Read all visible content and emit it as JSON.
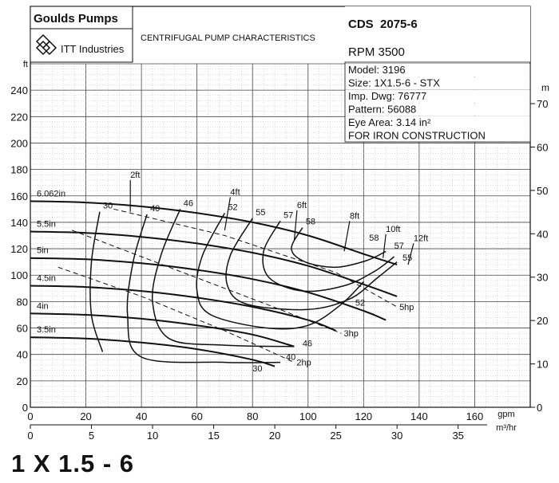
{
  "header": {
    "brand": "Goulds Pumps",
    "company": "ITT Industries",
    "chart_title": "CENTRIFUGAL PUMP CHARACTERISTICS",
    "curve_code": "CDS  2075-6",
    "rpm": "RPM 3500",
    "details": [
      "Model: 3196",
      "Size: 1X1.5-6 - STX",
      "Imp. Dwg: 76777",
      "Pattern: 56088",
      "Eye Area: 3.14 in²",
      "FOR IRON CONSTRUCTION"
    ]
  },
  "footer_title": "1 X 1.5 - 6",
  "colors": {
    "line": "#111111",
    "grid": "#b8b8b8",
    "grid_major": "#444444",
    "background": "#ffffff"
  },
  "chart_data": {
    "type": "line",
    "x_axis": {
      "label": "gpm",
      "range": [
        0,
        180
      ],
      "ticks": [
        0,
        20,
        40,
        60,
        80,
        100,
        120,
        140,
        160
      ]
    },
    "x2_axis": {
      "label": "m³/hr",
      "range": [
        0,
        40.9
      ],
      "ticks": [
        0,
        5,
        10,
        15,
        20,
        25,
        30,
        35
      ]
    },
    "y_axis": {
      "label": "ft",
      "range": [
        0,
        260
      ],
      "ticks": [
        0,
        20,
        40,
        60,
        80,
        100,
        120,
        140,
        160,
        180,
        200,
        220,
        240
      ]
    },
    "y2_axis": {
      "label": "m",
      "range": [
        0,
        79.2
      ],
      "ticks": [
        0,
        10,
        20,
        30,
        40,
        50,
        60,
        70
      ]
    },
    "head_curves": [
      {
        "label": "6.062in",
        "points": [
          [
            0,
            156
          ],
          [
            20,
            155
          ],
          [
            40,
            152
          ],
          [
            60,
            147
          ],
          [
            80,
            140
          ],
          [
            100,
            130
          ],
          [
            120,
            116
          ],
          [
            132,
            108
          ]
        ]
      },
      {
        "label": "5.5in",
        "points": [
          [
            0,
            133
          ],
          [
            20,
            132
          ],
          [
            40,
            129
          ],
          [
            60,
            124
          ],
          [
            80,
            117
          ],
          [
            100,
            107
          ],
          [
            120,
            93
          ],
          [
            132,
            84
          ]
        ]
      },
      {
        "label": "5in",
        "points": [
          [
            0,
            113
          ],
          [
            20,
            112
          ],
          [
            40,
            109
          ],
          [
            60,
            104
          ],
          [
            80,
            97
          ],
          [
            100,
            87
          ],
          [
            120,
            73
          ],
          [
            128,
            66
          ]
        ]
      },
      {
        "label": "4.5in",
        "points": [
          [
            0,
            92
          ],
          [
            20,
            91
          ],
          [
            40,
            88
          ],
          [
            60,
            83
          ],
          [
            80,
            76
          ],
          [
            100,
            66
          ],
          [
            110,
            58
          ]
        ]
      },
      {
        "label": "4in",
        "points": [
          [
            0,
            71
          ],
          [
            20,
            70
          ],
          [
            40,
            67
          ],
          [
            60,
            62
          ],
          [
            80,
            55
          ],
          [
            95,
            46
          ]
        ]
      },
      {
        "label": "3.5in",
        "points": [
          [
            0,
            53
          ],
          [
            20,
            52
          ],
          [
            40,
            49
          ],
          [
            60,
            44
          ],
          [
            80,
            36
          ],
          [
            88,
            31
          ]
        ]
      }
    ],
    "efficiency_curves": [
      {
        "label": "30",
        "points": [
          [
            25,
            148
          ],
          [
            22,
            110
          ],
          [
            22,
            70
          ],
          [
            26,
            42
          ]
        ]
      },
      {
        "label": "40",
        "points": [
          [
            42,
            146
          ],
          [
            37,
            110
          ],
          [
            35,
            70
          ],
          [
            40,
            38
          ],
          [
            70,
            34
          ],
          [
            90,
            34
          ]
        ]
      },
      {
        "label": "46",
        "points": [
          [
            54,
            150
          ],
          [
            47,
            115
          ],
          [
            44,
            80
          ],
          [
            50,
            52
          ],
          [
            70,
            47
          ],
          [
            95,
            46
          ]
        ]
      },
      {
        "label": "52",
        "points": [
          [
            70,
            147
          ],
          [
            62,
            115
          ],
          [
            60,
            88
          ],
          [
            65,
            70
          ],
          [
            85,
            60
          ],
          [
            100,
            62
          ],
          [
            112,
            78
          ],
          [
            120,
            95
          ]
        ]
      },
      {
        "label": "55",
        "points": [
          [
            80,
            143
          ],
          [
            72,
            115
          ],
          [
            71,
            92
          ],
          [
            78,
            78
          ],
          [
            100,
            74
          ],
          [
            115,
            82
          ],
          [
            125,
            98
          ],
          [
            132,
            110
          ]
        ]
      },
      {
        "label": "57",
        "points": [
          [
            90,
            141
          ],
          [
            84,
            118
          ],
          [
            86,
            98
          ],
          [
            98,
            88
          ],
          [
            113,
            92
          ],
          [
            124,
            103
          ],
          [
            131,
            114
          ]
        ]
      },
      {
        "label": "58",
        "points": [
          [
            98,
            136
          ],
          [
            94,
            120
          ],
          [
            99,
            110
          ],
          [
            110,
            106
          ],
          [
            121,
            111
          ],
          [
            128,
            118
          ]
        ]
      }
    ],
    "power_curves": [
      {
        "label": "2hp",
        "points": [
          [
            10,
            106
          ],
          [
            40,
            84
          ],
          [
            70,
            58
          ],
          [
            95,
            34
          ]
        ]
      },
      {
        "label": "3hp",
        "points": [
          [
            15,
            134
          ],
          [
            50,
            106
          ],
          [
            85,
            78
          ],
          [
            112,
            56
          ]
        ]
      },
      {
        "label": "5hp",
        "points": [
          [
            30,
            150
          ],
          [
            70,
            130
          ],
          [
            110,
            102
          ],
          [
            132,
            76
          ]
        ]
      }
    ],
    "npshr_curves": [
      {
        "label": "2ft",
        "points": [
          [
            36,
            172
          ],
          [
            36,
            148
          ]
        ]
      },
      {
        "label": "4ft",
        "points": [
          [
            72,
            159
          ],
          [
            70,
            134
          ]
        ]
      },
      {
        "label": "6ft",
        "points": [
          [
            96,
            149
          ],
          [
            95,
            126
          ]
        ]
      },
      {
        "label": "8ft",
        "points": [
          [
            115,
            141
          ],
          [
            113,
            118
          ]
        ]
      },
      {
        "label": "10ft",
        "points": [
          [
            128,
            131
          ],
          [
            127,
            113
          ]
        ]
      },
      {
        "label": "12ft",
        "points": [
          [
            138,
            124
          ],
          [
            136,
            108
          ]
        ]
      }
    ],
    "labels": {
      "efficiency_bottom": [
        "30",
        "40",
        "46",
        "52",
        "55",
        "57",
        "58"
      ],
      "efficiency_top": [
        "30",
        "40",
        "46",
        "52",
        "55",
        "57",
        "58"
      ]
    }
  }
}
